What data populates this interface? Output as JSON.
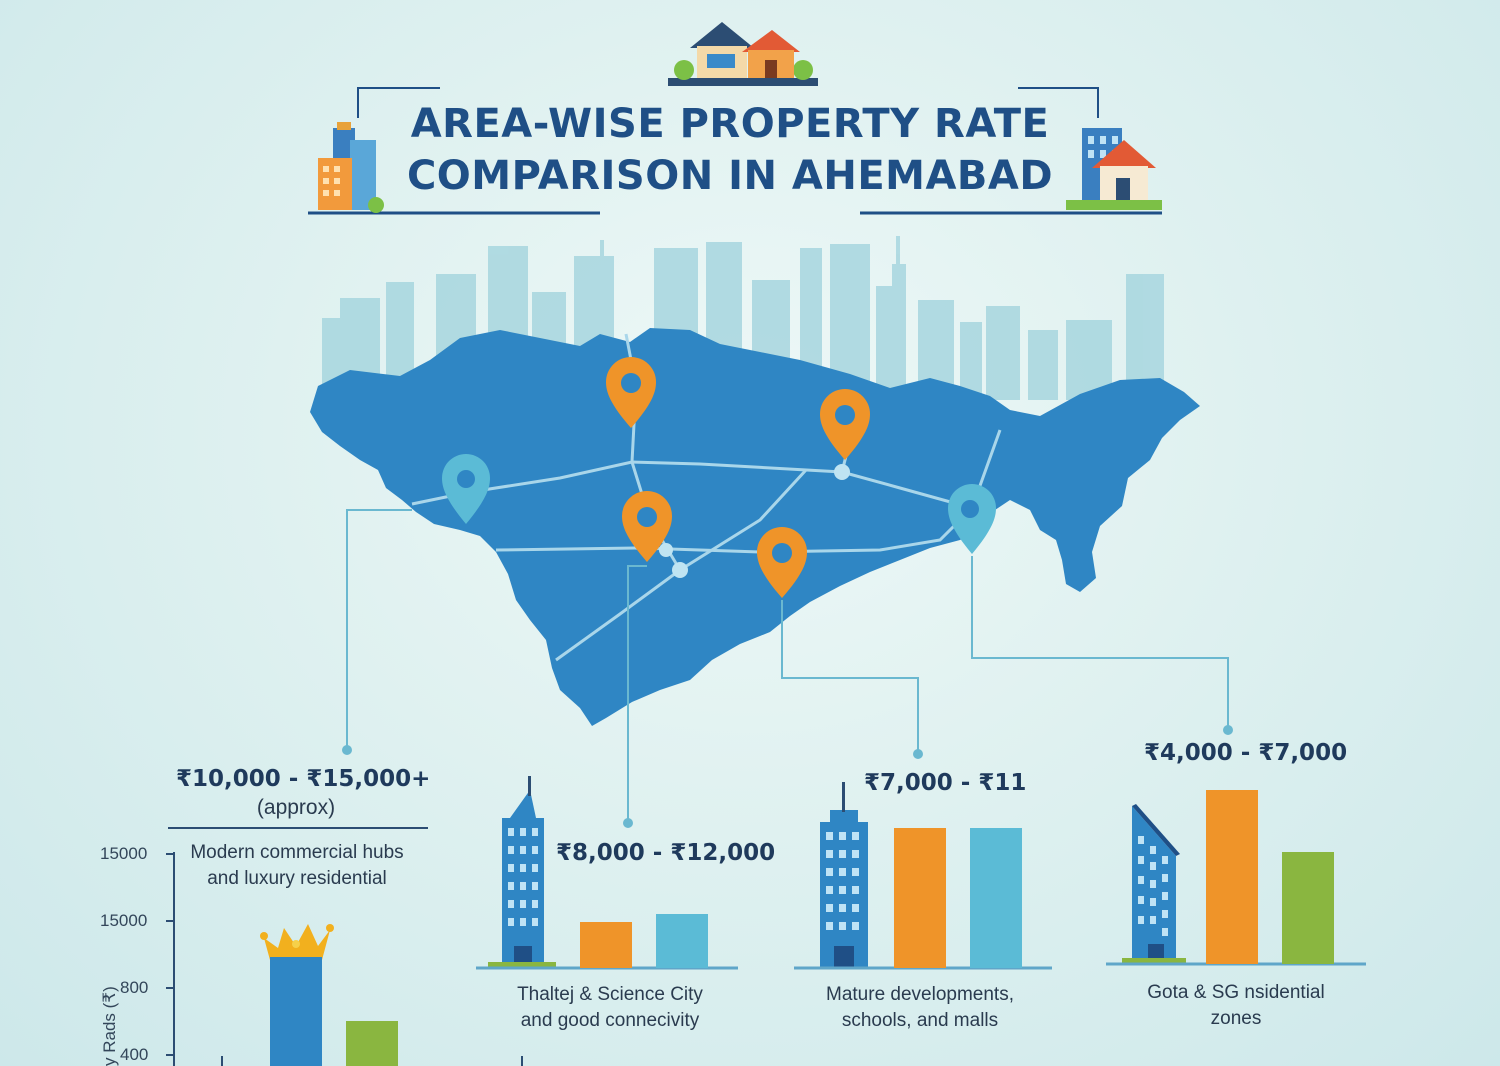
{
  "title": {
    "line1": "AREA-WISE PROPERTY RATE",
    "line2": "COMPARISON IN AHEMABAD"
  },
  "colors": {
    "map": "#2f86c4",
    "skyline": "#9fd0dc",
    "pin_orange": "#ef9429",
    "pin_blue": "#5bbbd6",
    "bar_blue": "#2f86c4",
    "bar_orange": "#ef9429",
    "bar_cyan": "#5bbbd6",
    "bar_green": "#8ab640",
    "title": "#1f4f86"
  },
  "chart_data": {
    "type": "bar",
    "axis": {
      "ylabel": "y Rads (₹)",
      "ticks": [
        "15000",
        "15000",
        "800",
        "400"
      ]
    },
    "panels": [
      {
        "price": "₹10,000 - ₹15,000+",
        "approx": "(approx)",
        "note": [
          "Modern commercial hubs",
          "and luxury residential"
        ],
        "bars": [
          {
            "color": "#2f86c4",
            "value": 0.78
          },
          {
            "color": "#8ab640",
            "value": 0.32
          }
        ]
      },
      {
        "price": "₹8,000 - ₹12,000",
        "note": [
          "Thaltej & Science City",
          "and good connecivity"
        ],
        "bars": [
          {
            "color": "#ef9429",
            "value": 0.23
          },
          {
            "color": "#5bbbd6",
            "value": 0.27
          }
        ]
      },
      {
        "price": "₹7,000 - ₹11",
        "note": [
          "Mature developments,",
          "schools, and malls"
        ],
        "bars": [
          {
            "color": "#ef9429",
            "value": 0.7
          },
          {
            "color": "#5bbbd6",
            "value": 0.7
          }
        ]
      },
      {
        "price": "₹4,000 - ₹7,000",
        "note": [
          "Gota & SG nsidential",
          "zones"
        ],
        "bars": [
          {
            "color": "#ef9429",
            "value": 0.87
          },
          {
            "color": "#8ab640",
            "value": 0.56
          }
        ]
      }
    ]
  }
}
